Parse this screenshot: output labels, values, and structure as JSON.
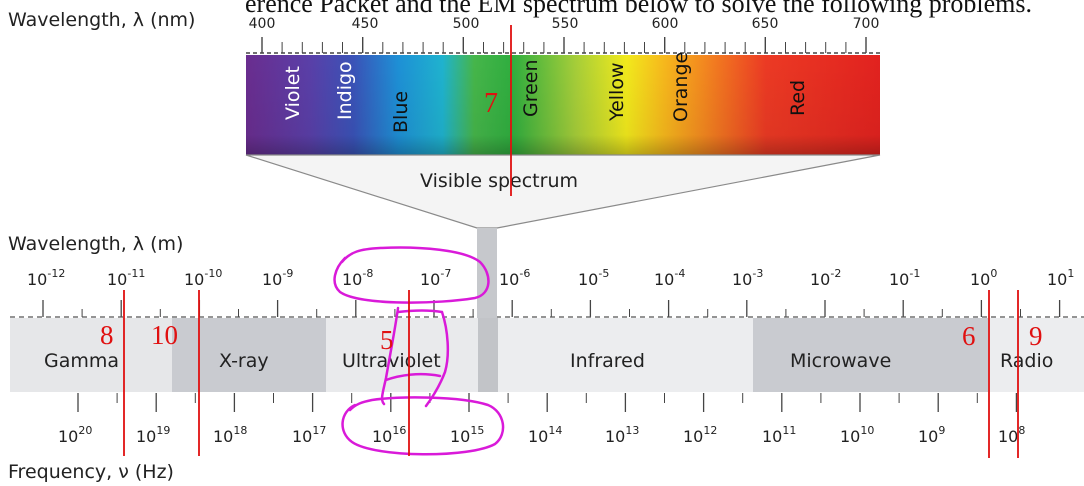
{
  "header_text": "erence Packet and the EM spectrum below to solve the following problems.",
  "visible": {
    "axis_label": "Wavelength, λ (nm)",
    "ticks": [
      400,
      450,
      500,
      550,
      600,
      650,
      700
    ],
    "bands": [
      "Violet",
      "Indigo",
      "Blue",
      "Green",
      "Yellow",
      "Orange",
      "Red"
    ],
    "caption": "Visible spectrum"
  },
  "wavelength_axis": {
    "label": "Wavelength, λ (m)",
    "exponents": [
      "-12",
      "-11",
      "-10",
      "-9",
      "-8",
      "-7",
      "-6",
      "-5",
      "-4",
      "-3",
      "-2",
      "-1",
      "0",
      "1"
    ]
  },
  "regions": [
    "Gamma",
    "X-ray",
    "Ultraviolet",
    "Infrared",
    "Microwave",
    "Radio"
  ],
  "frequency_axis": {
    "label": "Frequency, ν (Hz)",
    "exponents": [
      "20",
      "19",
      "18",
      "17",
      "16",
      "15",
      "14",
      "13",
      "12",
      "11",
      "10",
      "9",
      "8"
    ]
  },
  "annotations": {
    "markers": [
      "7",
      "8",
      "10",
      "5",
      "6",
      "9"
    ],
    "colors": {
      "marker": "#e01010",
      "circle": "#d91ad9"
    }
  }
}
